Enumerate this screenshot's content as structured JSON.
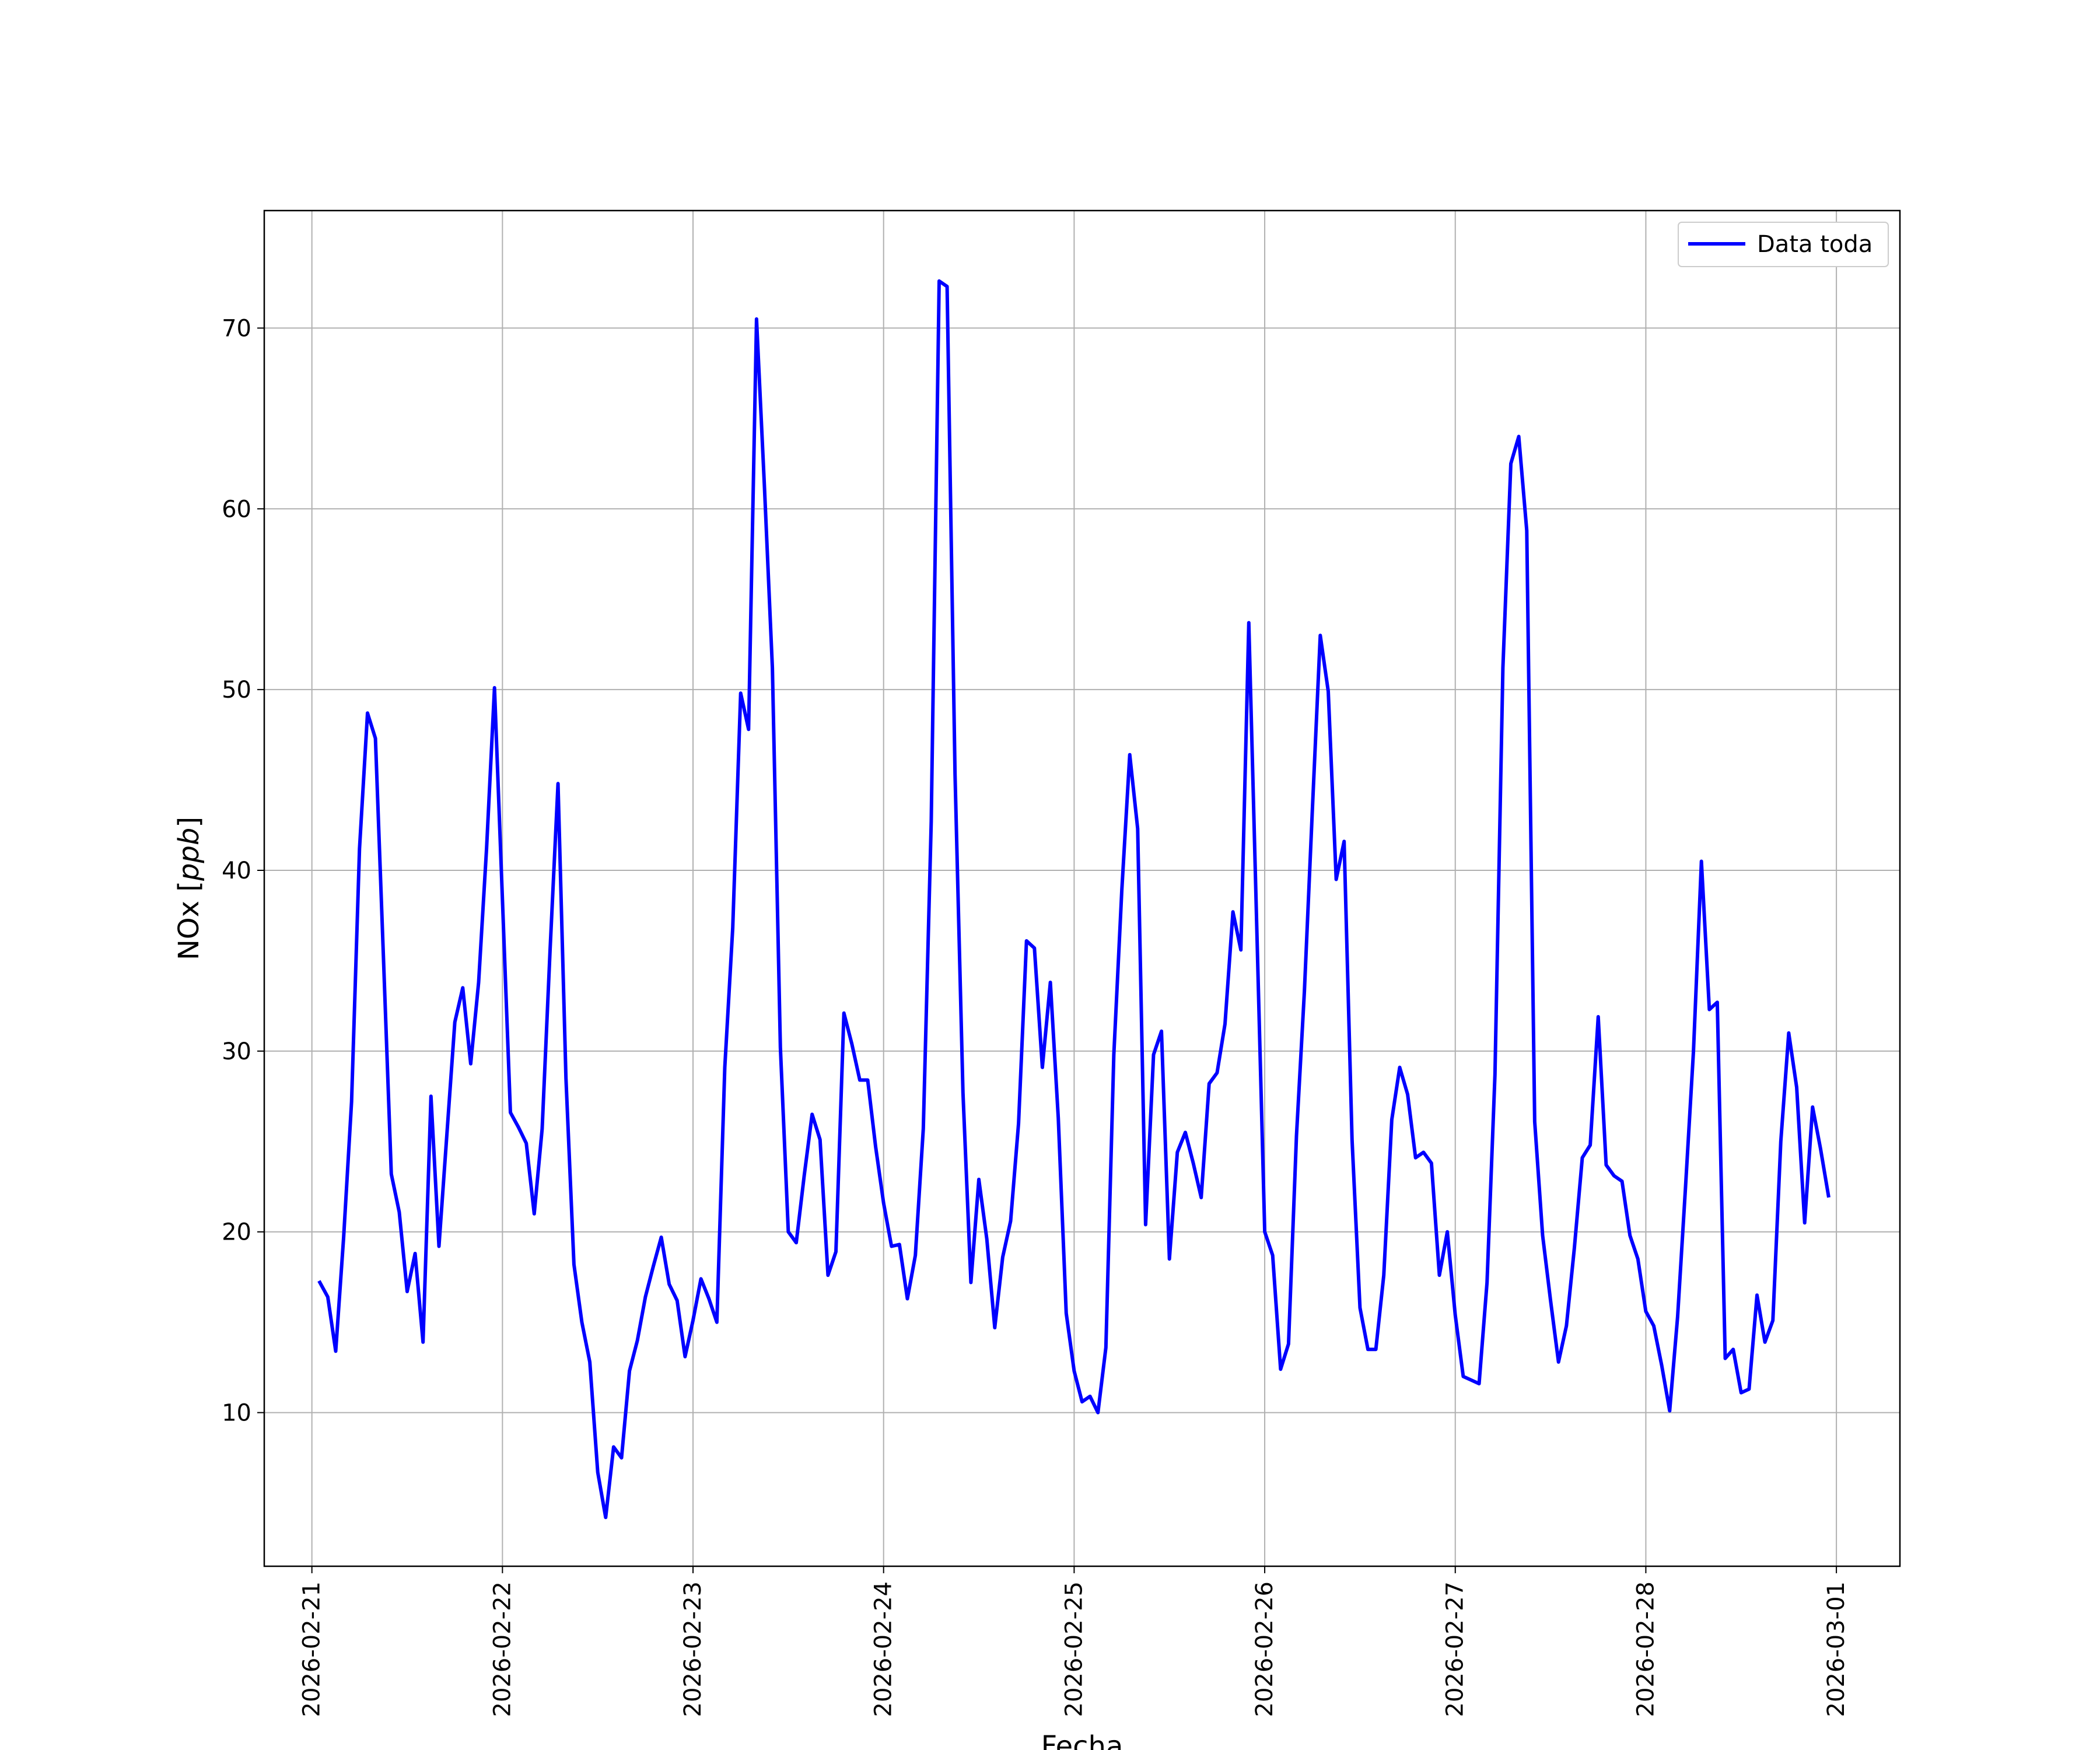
{
  "chart_data": {
    "type": "line",
    "title": "",
    "xlabel": "Fecha",
    "ylabel_main": "NOx [",
    "ylabel_unit": "ppb",
    "ylabel_close": "]",
    "ylim": [
      1.5,
      76.5
    ],
    "yticks": [
      10,
      20,
      30,
      40,
      50,
      60,
      70
    ],
    "xlim": [
      "2026-02-20T18:00",
      "2026-03-01T08:00"
    ],
    "xticks": [
      "2026-02-21",
      "2026-02-22",
      "2026-02-23",
      "2026-02-24",
      "2026-02-25",
      "2026-02-26",
      "2026-02-27",
      "2026-02-28",
      "2026-03-01"
    ],
    "grid": true,
    "legend_position": "top-right",
    "series": [
      {
        "name": "Data toda",
        "color": "#0000ff",
        "start": "2026-02-21T01:00",
        "step_hours": 1,
        "values": [
          17.2,
          16.4,
          13.4,
          19.7,
          27.2,
          41.2,
          48.7,
          47.3,
          35.3,
          23.2,
          21.1,
          16.7,
          18.8,
          13.9,
          27.5,
          19.2,
          25.4,
          31.6,
          33.5,
          29.3,
          33.8,
          41.2,
          50.1,
          38.4,
          26.6,
          25.8,
          24.9,
          21.0,
          25.7,
          35.6,
          44.8,
          28.5,
          18.2,
          15.0,
          12.8,
          6.7,
          4.2,
          8.1,
          7.5,
          12.3,
          14.0,
          16.4,
          18.1,
          19.7,
          17.1,
          16.2,
          13.1,
          15.1,
          17.4,
          16.3,
          15.0,
          29.1,
          36.8,
          49.8,
          47.8,
          70.5,
          61.2,
          51.2,
          30.2,
          20.0,
          19.4,
          23.1,
          26.5,
          25.1,
          17.6,
          18.9,
          32.1,
          30.4,
          28.4,
          28.4,
          24.7,
          21.6,
          19.2,
          19.3,
          16.3,
          18.7,
          25.7,
          42.7,
          72.6,
          72.3,
          45.3,
          27.7,
          17.2,
          22.9,
          19.6,
          14.7,
          18.6,
          20.6,
          26.0,
          36.1,
          35.7,
          29.1,
          33.8,
          26.3,
          15.5,
          12.3,
          10.6,
          10.9,
          10.0,
          13.6,
          29.8,
          38.9,
          46.4,
          42.3,
          20.4,
          29.8,
          31.1,
          18.5,
          24.4,
          25.5,
          23.8,
          21.9,
          28.2,
          28.8,
          31.5,
          37.7,
          35.6,
          53.7,
          36.8,
          20.0,
          18.7,
          12.4,
          13.8,
          25.3,
          33.3,
          43.3,
          53.0,
          49.9,
          39.5,
          41.6,
          25.1,
          15.8,
          13.5,
          13.5,
          17.6,
          26.2,
          29.1,
          27.6,
          24.1,
          24.4,
          23.8,
          17.6,
          20.0,
          15.4,
          12.0,
          11.8,
          11.6,
          17.2,
          28.7,
          51.2,
          62.5,
          64.0,
          58.8,
          26.1,
          19.8,
          16.2,
          12.8,
          14.8,
          19.1,
          24.1,
          24.8,
          31.9,
          23.7,
          23.1,
          22.8,
          19.8,
          18.5,
          15.6,
          14.8,
          12.6,
          10.1,
          15.3,
          22.5,
          30.0,
          40.5,
          32.3,
          32.7,
          13.0,
          13.5,
          11.1,
          11.3,
          16.5,
          13.9,
          15.1,
          25.0,
          31.0,
          28.0,
          20.5,
          26.9,
          24.6,
          22.0
        ]
      }
    ]
  }
}
